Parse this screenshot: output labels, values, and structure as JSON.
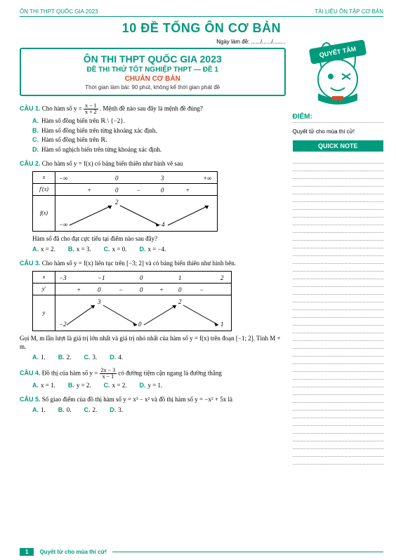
{
  "colors": {
    "brand": "#009b7c",
    "accent": "#d94a2a",
    "text": "#000000",
    "dotted": "#999999"
  },
  "typography": {
    "body_family": "Times New Roman",
    "ui_family": "Arial",
    "body_size_pt": 9
  },
  "header": {
    "left": "ÔN THI THPT QUỐC GIA 2023",
    "right": "TÀI LIỆU ÔN TẬP CƠ BẢN"
  },
  "title_main": "10 ĐỀ TỔNG ÔN CƠ BẢN",
  "date_line": "Ngày làm đề: ....../....../........",
  "exam_box": {
    "l1": "ÔN THI THPT QUỐC GIA 2023",
    "l2": "ĐỀ THI THỬ TỐT NGHIỆP THPT — ĐỀ 1",
    "l3": "CHUẨN CƠ BẢN",
    "l4": "Thời gian làm bài: 90 phút, không kể thời gian phát đề"
  },
  "sidebar": {
    "mascot_badge": "QUYẾT TÂM",
    "diem_label": "ĐIỂM:",
    "quyet": "Quyết tử cho mùa thi cử!",
    "quicknote": "QUICK NOTE",
    "note_line_count": 40
  },
  "questions": {
    "q1": {
      "label": "CÂU 1.",
      "stem_before": "Cho hàm số ",
      "stem_eq_lhs": "y = ",
      "frac_n": "x − 1",
      "frac_d": "x + 2",
      "stem_after": ". Mệnh đề nào sau đây là mệnh đề đúng?",
      "opts": [
        "Hàm số đồng biến trên ℝ \\ {−2}.",
        "Hàm số đồng biến trên từng khoảng xác định.",
        "Hàm số đồng biến trên ℝ.",
        "Hàm số nghịch biến trên từng khoảng xác định."
      ]
    },
    "q2": {
      "label": "CÂU 2.",
      "stem": "Cho hàm số y = f(x) có bảng biến thiên như hình vẽ sau",
      "var_table": {
        "row_x": [
          "x",
          "−∞",
          "0",
          "3",
          "+∞"
        ],
        "row_fpx": [
          "f′(x)",
          "+",
          "0",
          "−",
          "0",
          "+"
        ],
        "row_fx_label": "f(x)",
        "vals": {
          "top0": "2",
          "bot_left": "−∞",
          "bot_right": "−4"
        }
      },
      "sub": "Hàm số đã cho đạt cực tiểu tại điểm nào sau đây?",
      "opts_row": [
        "x = 2.",
        "x = 3.",
        "x = 0.",
        "x = −4."
      ]
    },
    "q3": {
      "label": "CÂU 3.",
      "stem": "Cho hàm số y = f(x) liên tục trên [−3; 2] và có bảng biến thiên như hình bên.",
      "var_table": {
        "row_x": [
          "x",
          "−3",
          "−1",
          "0",
          "1",
          "2"
        ],
        "row_yp": [
          "y′",
          "+",
          "0",
          "−",
          "0",
          "+",
          "0",
          "−"
        ],
        "row_y_label": "y",
        "vals": {
          "top_a": "3",
          "top_b": "2",
          "bot_l": "−2",
          "bot_m": "0",
          "bot_r": "1"
        }
      },
      "sub_before": "Gọi M, m lần lượt là giá trị lớn nhất và giá trị nhỏ nhất của hàm số y = f(x) trên đoạn [−1; 2]. Tính M + m.",
      "opts_row": [
        "1.",
        "2.",
        "3.",
        "4."
      ]
    },
    "q4": {
      "label": "CÂU 4.",
      "stem_before": "Đồ thị của hàm số ",
      "stem_eq_lhs": "y = ",
      "frac_n": "2x − 3",
      "frac_d": "x − 1",
      "stem_after": " có đường tiệm cận ngang là đường thẳng",
      "opts_row": [
        "x = 1.",
        "y = 2.",
        "x = 2.",
        "y = 1."
      ]
    },
    "q5": {
      "label": "CÂU 5.",
      "stem": "Số giao điểm của đồ thị hàm số y = x³ − x² và đồ thị hàm số y = −x² + 5x là",
      "opts_row": [
        "1.",
        "0.",
        "2.",
        "3."
      ]
    }
  },
  "opt_letters": [
    "A.",
    "B.",
    "C.",
    "D."
  ],
  "footer": {
    "page": "1",
    "motto": "Quyết tử cho mùa thi cử!"
  }
}
